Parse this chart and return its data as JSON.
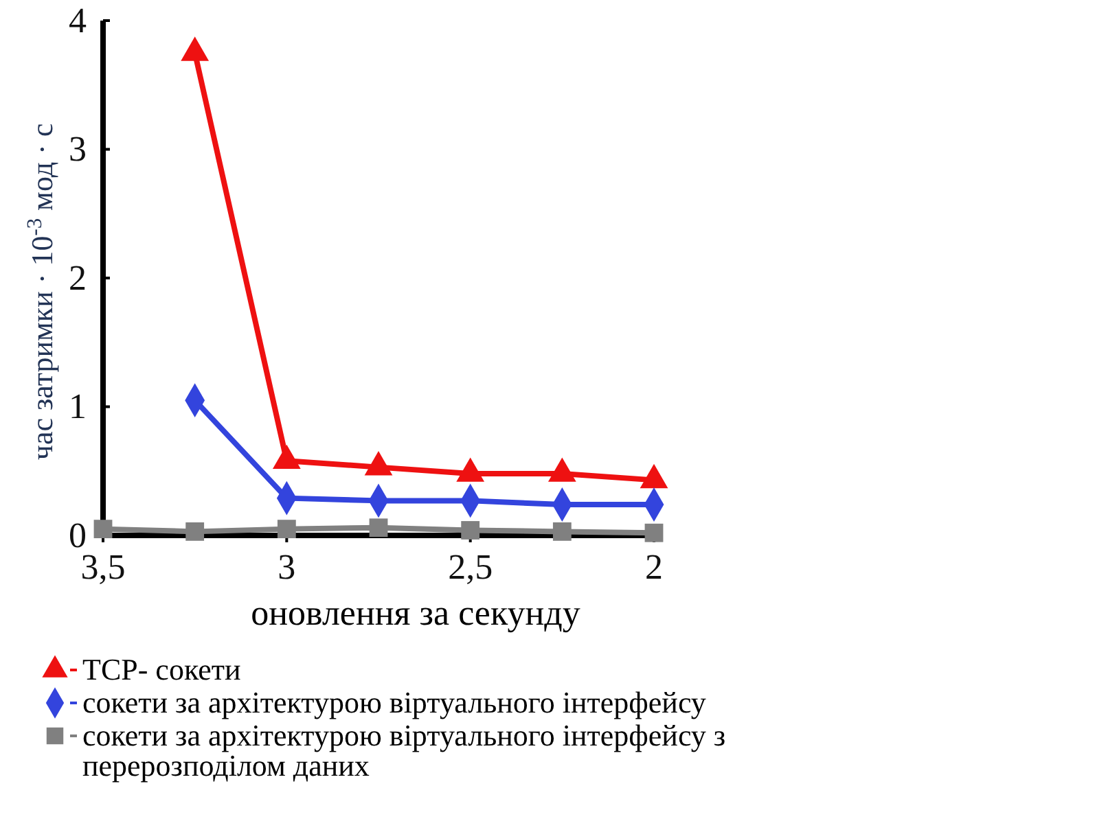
{
  "chart_data": {
    "type": "line",
    "xlabel": "оновлення за секунду",
    "ylabel": "час затримки · 10$^{-3}$ мод · с",
    "xlim": [
      3.5,
      2
    ],
    "xticks": [
      {
        "value": 3.5,
        "label": "3,5"
      },
      3,
      {
        "value": 2.5,
        "label": "2,5"
      },
      2
    ],
    "ylim": [
      0,
      4
    ],
    "yticks": [
      0,
      1,
      2,
      3,
      4
    ],
    "grid": false,
    "legend": "bottom",
    "series": [
      {
        "name": "TCP- сокети",
        "color": "#ee1111",
        "marker": "triangle",
        "x": [
          3.25,
          3,
          2.75,
          2.5,
          2.25,
          2
        ],
        "values": [
          3.75,
          0.58,
          0.53,
          0.48,
          0.48,
          0.43
        ]
      },
      {
        "name": "сокети за архітектурою віртуального інтерфейсу",
        "color": "#3344dd",
        "marker": "diamond",
        "x": [
          3.25,
          3,
          2.75,
          2.5,
          2.25,
          2
        ],
        "values": [
          1.05,
          0.29,
          0.27,
          0.27,
          0.24,
          0.24
        ]
      },
      {
        "name": "сокети за архітектурою віртуального інтерфейсу з перерозподілом даних",
        "color": "#808080",
        "marker": "square",
        "x": [
          3.5,
          3.25,
          3,
          2.75,
          2.5,
          2.25,
          2
        ],
        "values": [
          0.05,
          0.03,
          0.05,
          0.06,
          0.04,
          0.03,
          0.02
        ]
      }
    ]
  }
}
